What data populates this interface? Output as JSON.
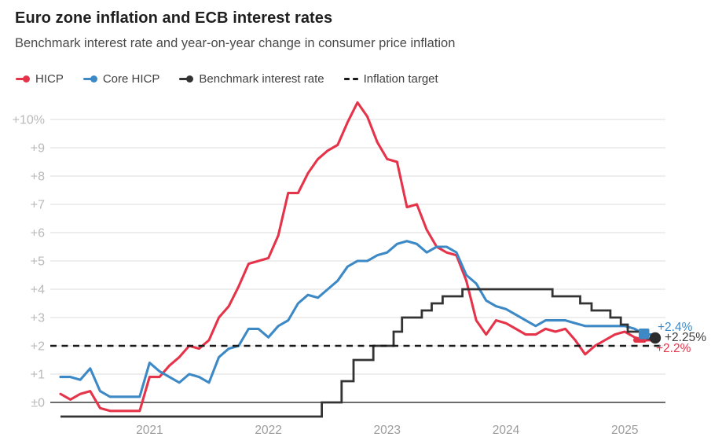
{
  "colors": {
    "hicp": "#e5334a",
    "core": "#3d89c5",
    "rate": "#333333",
    "rate_dot": "#2d2d2d",
    "target": "#1a1a1a",
    "grid": "#dcdcdc",
    "zero_axis": "#3c3c3c",
    "y_tick_text": "#b9b9b9",
    "x_tick_text": "#9c9c9c",
    "title_text": "#1f1f1f",
    "subtitle_text": "#4a4a4a",
    "rate_label_text": "#3d3d3d"
  },
  "header": {
    "title": "Euro zone inflation and ECB interest rates",
    "subtitle": "Benchmark interest rate and year-on-year change in consumer price inflation"
  },
  "legend": {
    "items": [
      {
        "label": "HICP",
        "color_key": "hicp",
        "marker": "line-dot"
      },
      {
        "label": "Core HICP",
        "color_key": "core",
        "marker": "line-dot"
      },
      {
        "label": "Benchmark interest rate",
        "color_key": "rate",
        "marker": "line-dot"
      },
      {
        "label": "Inflation target",
        "color_key": "target",
        "marker": "dashes"
      }
    ]
  },
  "chart_data": {
    "type": "line",
    "title": "Euro zone inflation and ECB interest rates",
    "x_start": "2020-04",
    "x_end": "2025-04",
    "frequency": "monthly",
    "ylim": [
      -0.5,
      10.6
    ],
    "grid": true,
    "y_ticks": [
      {
        "value": 10,
        "label": "+10%"
      },
      {
        "value": 9,
        "label": "+9"
      },
      {
        "value": 8,
        "label": "+8"
      },
      {
        "value": 7,
        "label": "+7"
      },
      {
        "value": 6,
        "label": "+6"
      },
      {
        "value": 5,
        "label": "+5"
      },
      {
        "value": 4,
        "label": "+4"
      },
      {
        "value": 3,
        "label": "+3"
      },
      {
        "value": 2,
        "label": "+2"
      },
      {
        "value": 1,
        "label": "+1"
      },
      {
        "value": 0,
        "label": "±0"
      }
    ],
    "x_ticks": [
      {
        "month_index": 9,
        "label": "2021"
      },
      {
        "month_index": 21,
        "label": "2022"
      },
      {
        "month_index": 33,
        "label": "2023"
      },
      {
        "month_index": 45,
        "label": "2024"
      },
      {
        "month_index": 57,
        "label": "2025"
      }
    ],
    "series": [
      {
        "name": "HICP",
        "color_key": "hicp",
        "values": [
          0.3,
          0.1,
          0.3,
          0.4,
          -0.2,
          -0.3,
          -0.3,
          -0.3,
          -0.3,
          0.9,
          0.9,
          1.3,
          1.6,
          2.0,
          1.9,
          2.2,
          3.0,
          3.4,
          4.1,
          4.9,
          5.0,
          5.1,
          5.9,
          7.4,
          7.4,
          8.1,
          8.6,
          8.9,
          9.1,
          9.9,
          10.6,
          10.1,
          9.2,
          8.6,
          8.5,
          6.9,
          7.0,
          6.1,
          5.5,
          5.3,
          5.2,
          4.3,
          2.9,
          2.4,
          2.9,
          2.8,
          2.6,
          2.4,
          2.4,
          2.6,
          2.5,
          2.6,
          2.2,
          1.7,
          2.0,
          2.2,
          2.4,
          2.5,
          2.3,
          2.2,
          2.2
        ]
      },
      {
        "name": "Core HICP",
        "color_key": "core",
        "values": [
          0.9,
          0.9,
          0.8,
          1.2,
          0.4,
          0.2,
          0.2,
          0.2,
          0.2,
          1.4,
          1.1,
          0.9,
          0.7,
          1.0,
          0.9,
          0.7,
          1.6,
          1.9,
          2.0,
          2.6,
          2.6,
          2.3,
          2.7,
          2.9,
          3.5,
          3.8,
          3.7,
          4.0,
          4.3,
          4.8,
          5.0,
          5.0,
          5.2,
          5.3,
          5.6,
          5.7,
          5.6,
          5.3,
          5.5,
          5.5,
          5.3,
          4.5,
          4.2,
          3.6,
          3.4,
          3.3,
          3.1,
          2.9,
          2.7,
          2.9,
          2.9,
          2.9,
          2.8,
          2.7,
          2.7,
          2.7,
          2.7,
          2.7,
          2.6,
          2.4,
          2.4
        ]
      }
    ],
    "rate_series": {
      "name": "Benchmark interest rate",
      "color_key": "rate",
      "style": "step",
      "points": [
        [
          0,
          -0.5
        ],
        [
          26.4,
          0.0
        ],
        [
          28.4,
          0.75
        ],
        [
          29.6,
          1.5
        ],
        [
          31.6,
          2.0
        ],
        [
          33.65,
          2.5
        ],
        [
          34.5,
          3.0
        ],
        [
          36.5,
          3.25
        ],
        [
          37.5,
          3.5
        ],
        [
          38.6,
          3.75
        ],
        [
          40.6,
          4.0
        ],
        [
          49.7,
          3.75
        ],
        [
          52.5,
          3.5
        ],
        [
          53.65,
          3.25
        ],
        [
          55.55,
          3.0
        ],
        [
          56.6,
          2.75
        ],
        [
          57.3,
          2.5
        ],
        [
          58.9,
          2.25
        ],
        [
          60.2,
          2.25
        ]
      ]
    },
    "target_line": {
      "name": "Inflation target",
      "value": 2,
      "style": "dashed"
    },
    "end_labels": [
      {
        "text": "+2.4%",
        "color_key": "core",
        "series": "Core HICP"
      },
      {
        "text": "+2.25%",
        "color_key": "rate_label_text",
        "series": "Benchmark interest rate"
      },
      {
        "text": "+2.2%",
        "color_key": "hicp",
        "series": "HICP"
      }
    ],
    "legend_position": "top"
  }
}
